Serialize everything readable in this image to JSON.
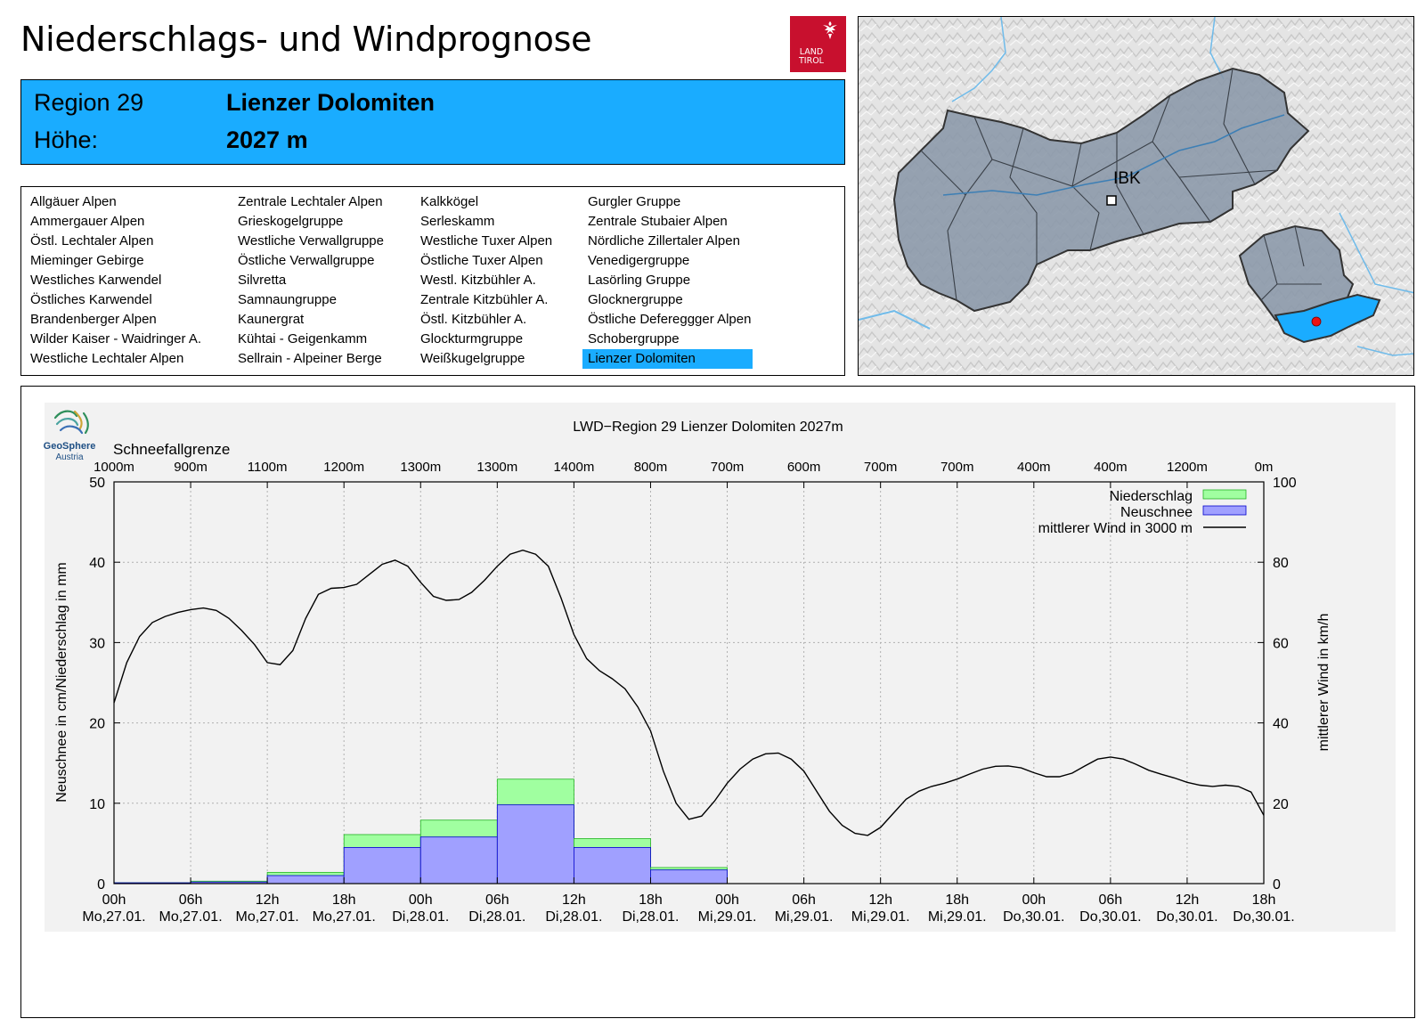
{
  "page_title": "Niederschlags- und Windprognose",
  "logo": {
    "line1": "LAND",
    "line2": "TIROL"
  },
  "region_box": {
    "region_label": "Region 29",
    "region_name": "Lienzer Dolomiten",
    "height_label": "Höhe:",
    "height_value": "2027 m"
  },
  "regions": [
    [
      "Allgäuer Alpen",
      "Ammergauer Alpen",
      "Östl. Lechtaler Alpen",
      "Mieminger Gebirge",
      "Westliches Karwendel",
      "Östliches Karwendel",
      "Brandenberger Alpen",
      "Wilder Kaiser - Waidringer A.",
      "Westliche Lechtaler Alpen"
    ],
    [
      "Zentrale Lechtaler Alpen",
      "Grieskogelgruppe",
      "Westliche Verwallgruppe",
      "Östliche Verwallgruppe",
      "Silvretta",
      "Samnaungruppe",
      "Kaunergrat",
      "Kühtai - Geigenkamm",
      "Sellrain - Alpeiner Berge"
    ],
    [
      "Kalkkögel",
      "Serleskamm",
      "Westliche Tuxer Alpen",
      "Östliche Tuxer Alpen",
      "Westl. Kitzbühler A.",
      "Zentrale Kitzbühler A.",
      "Östl. Kitzbühler A.",
      "Glockturmgruppe",
      "Weißkugelgruppe"
    ],
    [
      "Gurgler Gruppe",
      "Zentrale Stubaier Alpen",
      "Nördliche Zillertaler Alpen",
      "Venedigergruppe",
      "Lasörling Gruppe",
      "Glocknergruppe",
      "Östliche Defereggger Alpen",
      "Schobergruppe",
      "Lienzer Dolomiten"
    ]
  ],
  "selected_region": "Lienzer Dolomiten",
  "map": {
    "city_label": "IBK"
  },
  "chart_data": {
    "type": "bar",
    "title": "LWD−Region 29 Lienzer Dolomiten 2027m",
    "provider": {
      "name": "GeoSphere",
      "sub": "Austria"
    },
    "snow_line_label": "Schneefallgrenze",
    "snow_line": [
      "1000m",
      "900m",
      "1100m",
      "1200m",
      "1300m",
      "1300m",
      "1400m",
      "800m",
      "700m",
      "600m",
      "700m",
      "700m",
      "400m",
      "400m",
      "1200m",
      "0m"
    ],
    "x_hours": [
      0,
      6,
      12,
      18,
      24,
      30,
      36,
      42,
      48,
      54,
      60,
      66,
      72,
      78,
      84,
      90
    ],
    "x_tick_labels": [
      [
        "00h",
        "Mo,27.01."
      ],
      [
        "06h",
        "Mo,27.01."
      ],
      [
        "12h",
        "Mo,27.01."
      ],
      [
        "18h",
        "Mo,27.01."
      ],
      [
        "00h",
        "Di,28.01."
      ],
      [
        "06h",
        "Di,28.01."
      ],
      [
        "12h",
        "Di,28.01."
      ],
      [
        "18h",
        "Di,28.01."
      ],
      [
        "00h",
        "Mi,29.01."
      ],
      [
        "06h",
        "Mi,29.01."
      ],
      [
        "12h",
        "Mi,29.01."
      ],
      [
        "18h",
        "Mi,29.01."
      ],
      [
        "00h",
        "Do,30.01."
      ],
      [
        "06h",
        "Do,30.01."
      ],
      [
        "12h",
        "Do,30.01."
      ],
      [
        "18h",
        "Do,30.01."
      ]
    ],
    "ylabel": "Neuschnee in cm/Niederschlag in mm",
    "ylim": [
      0,
      50
    ],
    "yticks": [
      0,
      10,
      20,
      30,
      40,
      50
    ],
    "y2label": "mittlerer Wind in km/h",
    "y2lim": [
      0,
      100
    ],
    "y2ticks": [
      0,
      20,
      40,
      60,
      80,
      100
    ],
    "grid": true,
    "legend_placement": "top-right",
    "legend": [
      "Niederschlag",
      "Neuschnee",
      "mittlerer Wind in 3000 m"
    ],
    "colors": {
      "niederschlag": "#a0ffa0",
      "neuschnee": "#a0a0ff",
      "wind": "#000000",
      "bar_edge_green": "#22b222",
      "bar_edge_blue": "#0000cc"
    },
    "bar_intervals": [
      [
        0,
        6
      ],
      [
        6,
        12
      ],
      [
        12,
        18
      ],
      [
        18,
        24
      ],
      [
        24,
        30
      ],
      [
        30,
        36
      ],
      [
        36,
        42
      ],
      [
        42,
        48
      ]
    ],
    "niederschlag": [
      0.1,
      0.3,
      1.4,
      6.1,
      7.9,
      13.0,
      5.6,
      2.0
    ],
    "neuschnee": [
      0.1,
      0.2,
      1.0,
      4.5,
      5.8,
      9.8,
      4.5,
      1.7
    ],
    "wind": {
      "x": [
        0,
        1,
        2,
        3,
        4,
        5,
        6,
        7,
        8,
        9,
        10,
        11,
        12,
        13,
        14,
        15,
        16,
        17,
        18,
        19,
        20,
        21,
        22,
        23,
        24,
        25,
        26,
        27,
        28,
        29,
        30,
        31,
        32,
        33,
        34,
        35,
        36,
        37,
        38,
        39,
        40,
        41,
        42,
        43,
        44,
        45,
        46,
        47,
        48,
        49,
        50,
        51,
        52,
        53,
        54,
        55,
        56,
        57,
        58,
        59,
        60,
        61,
        62,
        63,
        64,
        65,
        66,
        67,
        68,
        69,
        70,
        71,
        72,
        73,
        74,
        75,
        76,
        77,
        78,
        79,
        80,
        81,
        82,
        83,
        84,
        85,
        86,
        87,
        88,
        89,
        90
      ],
      "y": [
        45,
        55,
        61.5,
        65,
        66.5,
        67.5,
        68.2,
        68.6,
        68,
        66,
        63,
        59.5,
        55,
        54.5,
        58,
        66,
        72,
        73.5,
        73.7,
        74.5,
        77,
        79.5,
        80.5,
        79,
        75,
        71.5,
        70.5,
        70.7,
        72.5,
        75.5,
        79,
        82,
        83,
        82,
        79,
        71,
        62,
        56,
        53,
        51,
        48.5,
        44,
        38,
        28,
        20,
        16,
        16.8,
        20.5,
        25,
        28.5,
        31,
        32.3,
        32.5,
        31,
        28,
        23,
        18,
        14.5,
        12.5,
        12,
        14,
        17.5,
        21,
        23,
        24.2,
        25,
        26,
        27.3,
        28.5,
        29.2,
        29.3,
        28.8,
        27.6,
        26.6,
        26.6,
        27.5,
        29.3,
        31,
        31.5,
        31,
        29.7,
        28.2,
        27.2,
        26.3,
        25.2,
        24.5,
        24.2,
        24.5,
        24.2,
        22.8,
        17
      ]
    }
  }
}
